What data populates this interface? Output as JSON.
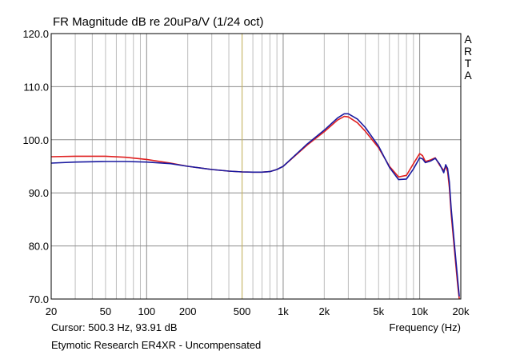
{
  "chart_data": {
    "type": "line",
    "title": "FR Magnitude dB re 20uPa/V (1/24 oct)",
    "brand": [
      "A",
      "R",
      "T",
      "A"
    ],
    "xlabel": "Frequency (Hz)",
    "ylabel": "",
    "x_scale": "log",
    "xlim": [
      20,
      20000
    ],
    "ylim": [
      70,
      120
    ],
    "grid": true,
    "x_ticks": [
      {
        "value": 20,
        "label": "20"
      },
      {
        "value": 50,
        "label": "50"
      },
      {
        "value": 100,
        "label": "100"
      },
      {
        "value": 200,
        "label": "200"
      },
      {
        "value": 500,
        "label": "500"
      },
      {
        "value": 1000,
        "label": "1k"
      },
      {
        "value": 2000,
        "label": "2k"
      },
      {
        "value": 5000,
        "label": "5k"
      },
      {
        "value": 10000,
        "label": "10k"
      },
      {
        "value": 20000,
        "label": "20k"
      }
    ],
    "y_ticks": [
      {
        "value": 120,
        "label": "120.0"
      },
      {
        "value": 110,
        "label": "110.0"
      },
      {
        "value": 100,
        "label": "100.0"
      },
      {
        "value": 90,
        "label": "90.0"
      },
      {
        "value": 80,
        "label": "80.0"
      },
      {
        "value": 70,
        "label": "70.0"
      }
    ],
    "cursor": {
      "x": 500.3,
      "y": 93.91,
      "text": "Cursor: 500.3 Hz, 93.91 dB",
      "color": "#c8b45a"
    },
    "device": "Etymotic Research ER4XR - Uncompensated",
    "series": [
      {
        "color": "#e02020",
        "x": [
          20,
          30,
          50,
          70,
          100,
          150,
          200,
          300,
          400,
          500,
          600,
          700,
          800,
          900,
          1000,
          1200,
          1500,
          2000,
          2500,
          2800,
          3000,
          3500,
          4000,
          5000,
          6000,
          7000,
          8000,
          9000,
          10000,
          10500,
          11000,
          12000,
          13000,
          14000,
          15000,
          15500,
          16000,
          16500,
          17000,
          18000,
          19000,
          19500
        ],
        "y": [
          96.8,
          96.9,
          96.9,
          96.7,
          96.3,
          95.6,
          95.0,
          94.4,
          94.1,
          93.95,
          93.9,
          93.9,
          94.0,
          94.4,
          95.0,
          96.8,
          99.0,
          101.5,
          103.7,
          104.4,
          104.3,
          103.2,
          101.6,
          98.5,
          95.0,
          93.0,
          93.3,
          95.5,
          97.4,
          97.0,
          95.9,
          96.2,
          96.6,
          95.2,
          94.2,
          95.0,
          94.0,
          91.0,
          86.0,
          79.0,
          72.5,
          70.0
        ]
      },
      {
        "color": "#1a1aa0",
        "x": [
          20,
          30,
          50,
          70,
          100,
          150,
          200,
          300,
          400,
          500,
          600,
          700,
          800,
          900,
          1000,
          1200,
          1500,
          2000,
          2500,
          2800,
          3000,
          3500,
          4000,
          5000,
          6000,
          7000,
          8000,
          9000,
          10000,
          10500,
          11000,
          12000,
          13000,
          14000,
          15000,
          15500,
          16000,
          16500,
          17000,
          18000,
          19000,
          19500
        ],
        "y": [
          95.6,
          95.8,
          95.9,
          95.9,
          95.8,
          95.5,
          95.0,
          94.4,
          94.1,
          93.95,
          93.9,
          93.9,
          94.0,
          94.4,
          95.0,
          96.9,
          99.2,
          101.8,
          104.1,
          104.9,
          104.9,
          103.9,
          102.3,
          98.8,
          94.8,
          92.5,
          92.6,
          94.5,
          96.6,
          96.4,
          95.7,
          96.0,
          96.5,
          95.4,
          93.8,
          95.3,
          94.6,
          92.0,
          87.0,
          80.0,
          73.5,
          70.5
        ]
      }
    ]
  }
}
